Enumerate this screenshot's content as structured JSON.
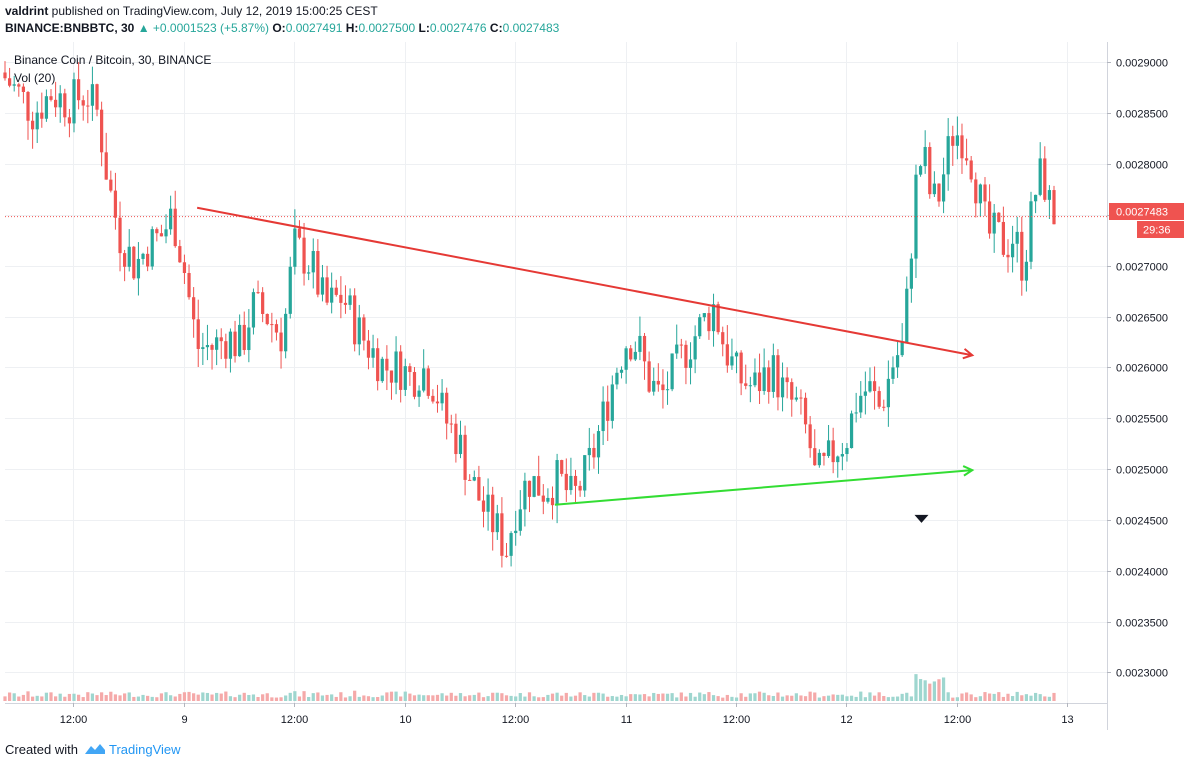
{
  "header": {
    "author": "valdrint",
    "published": " published on TradingView.com, July 12, 2019 15:00:25 CEST",
    "symbol": "BINANCE:BNBBTC, 30",
    "change": "▲ +0.0001523 (+5.87%)",
    "open_label": "O:",
    "open": "0.0027491",
    "high_label": "H:",
    "high": "0.0027500",
    "low_label": "L:",
    "low": "0.0027476",
    "close_label": "C:",
    "close": "0.0027483"
  },
  "legend": {
    "title": "Binance Coin / Bitcoin, 30, BINANCE",
    "volume": "Vol (20)"
  },
  "footer": {
    "created": "Created with",
    "brand": "TradingView"
  },
  "colors": {
    "up": "#26a69a",
    "down": "#ef5350",
    "vol_up": "#9ed6cf",
    "vol_down": "#f5a9a9",
    "resistance": "#e53935",
    "support": "#33dd33",
    "price_tag": "#ef5350"
  },
  "chart_data": {
    "type": "candlestick",
    "interval": "30",
    "ylim": [
      0.00227,
      0.00292
    ],
    "yticks": [
      0.0023,
      0.00235,
      0.0024,
      0.00245,
      0.0025,
      0.00255,
      0.0026,
      0.00265,
      0.0027,
      0.00275,
      0.0028,
      0.00285,
      0.0029
    ],
    "ytick_labels": [
      "0.0023000",
      "0.0023500",
      "0.0024000",
      "0.0024500",
      "0.0025000",
      "0.0025500",
      "0.0026000",
      "0.0026500",
      "0.0027000",
      "0.0027500",
      "0.0028000",
      "0.0028500",
      "0.0029000"
    ],
    "xticks": [
      {
        "label": "12:00",
        "day": 8.5
      },
      {
        "label": "9",
        "day": 9
      },
      {
        "label": "12:00",
        "day": 9.5
      },
      {
        "label": "10",
        "day": 10
      },
      {
        "label": "12:00",
        "day": 10.5
      },
      {
        "label": "11",
        "day": 11
      },
      {
        "label": "12:00",
        "day": 11.5
      },
      {
        "label": "12",
        "day": 12
      },
      {
        "label": "12:00",
        "day": 12.5
      },
      {
        "label": "13",
        "day": 13
      }
    ],
    "xlim_days": [
      8.19,
      13.18
    ],
    "last_price": "0.0027483",
    "countdown": "29:36",
    "price_path": [
      [
        8.19,
        0.00289
      ],
      [
        8.27,
        0.00287
      ],
      [
        8.34,
        0.00285
      ],
      [
        8.42,
        0.00287
      ],
      [
        8.5,
        0.00286
      ],
      [
        8.58,
        0.00287
      ],
      [
        8.63,
        0.00285
      ],
      [
        8.68,
        0.00278
      ],
      [
        8.73,
        0.00273
      ],
      [
        8.8,
        0.0027
      ],
      [
        8.86,
        0.00272
      ],
      [
        8.92,
        0.00273
      ],
      [
        8.97,
        0.00275
      ],
      [
        9.02,
        0.0027
      ],
      [
        9.08,
        0.00262
      ],
      [
        9.15,
        0.00262
      ],
      [
        9.22,
        0.00263
      ],
      [
        9.28,
        0.00262
      ],
      [
        9.33,
        0.00266
      ],
      [
        9.4,
        0.00265
      ],
      [
        9.47,
        0.00263
      ],
      [
        9.52,
        0.00272
      ],
      [
        9.6,
        0.0027
      ],
      [
        9.66,
        0.00266
      ],
      [
        9.74,
        0.00267
      ],
      [
        9.8,
        0.00264
      ],
      [
        9.86,
        0.00262
      ],
      [
        9.93,
        0.0026
      ],
      [
        10.0,
        0.0026
      ],
      [
        10.05,
        0.00259
      ],
      [
        10.1,
        0.0026
      ],
      [
        10.16,
        0.00258
      ],
      [
        10.2,
        0.00255
      ],
      [
        10.26,
        0.00253
      ],
      [
        10.32,
        0.00249
      ],
      [
        10.38,
        0.00246
      ],
      [
        10.44,
        0.00244
      ],
      [
        10.48,
        0.00242
      ],
      [
        10.52,
        0.00246
      ],
      [
        10.58,
        0.00249
      ],
      [
        10.65,
        0.00248
      ],
      [
        10.72,
        0.00249
      ],
      [
        10.78,
        0.00247
      ],
      [
        10.83,
        0.00249
      ],
      [
        10.88,
        0.00252
      ],
      [
        10.93,
        0.00256
      ],
      [
        10.98,
        0.0026
      ],
      [
        11.03,
        0.00263
      ],
      [
        11.08,
        0.00262
      ],
      [
        11.12,
        0.00259
      ],
      [
        11.18,
        0.00257
      ],
      [
        11.25,
        0.0026
      ],
      [
        11.3,
        0.00262
      ],
      [
        11.36,
        0.00264
      ],
      [
        11.42,
        0.00266
      ],
      [
        11.47,
        0.00262
      ],
      [
        11.53,
        0.00259
      ],
      [
        11.6,
        0.00258
      ],
      [
        11.68,
        0.0026
      ],
      [
        11.75,
        0.00257
      ],
      [
        11.8,
        0.00256
      ],
      [
        11.85,
        0.00253
      ],
      [
        11.88,
        0.00249
      ],
      [
        11.92,
        0.0025
      ],
      [
        11.97,
        0.00252
      ],
      [
        12.02,
        0.00253
      ],
      [
        12.07,
        0.00257
      ],
      [
        12.12,
        0.00258
      ],
      [
        12.17,
        0.00256
      ],
      [
        12.2,
        0.00258
      ],
      [
        12.24,
        0.00261
      ],
      [
        12.28,
        0.00262
      ],
      [
        12.31,
        0.00271
      ],
      [
        12.34,
        0.00279
      ],
      [
        12.37,
        0.00281
      ],
      [
        12.4,
        0.00277
      ],
      [
        12.43,
        0.00276
      ],
      [
        12.47,
        0.0028
      ],
      [
        12.5,
        0.00283
      ],
      [
        12.54,
        0.00283
      ],
      [
        12.58,
        0.00281
      ],
      [
        12.62,
        0.00277
      ],
      [
        12.66,
        0.00273
      ],
      [
        12.7,
        0.00273
      ],
      [
        12.74,
        0.00272
      ],
      [
        12.78,
        0.00273
      ],
      [
        12.82,
        0.0027
      ],
      [
        12.86,
        0.00275
      ],
      [
        12.89,
        0.00279
      ],
      [
        12.92,
        0.00278
      ],
      [
        12.95,
        0.00275
      ]
    ],
    "annotations": [
      {
        "type": "trendline",
        "role": "resistance",
        "from": [
          9.06,
          0.002757
        ],
        "to": [
          12.57,
          0.002612
        ],
        "arrow": true
      },
      {
        "type": "trendline",
        "role": "support",
        "from": [
          10.68,
          0.002465
        ],
        "to": [
          12.57,
          0.002499
        ],
        "arrow": true
      },
      {
        "type": "marker",
        "shape": "down-triangle",
        "at": [
          12.34,
          0.002451
        ]
      }
    ]
  }
}
